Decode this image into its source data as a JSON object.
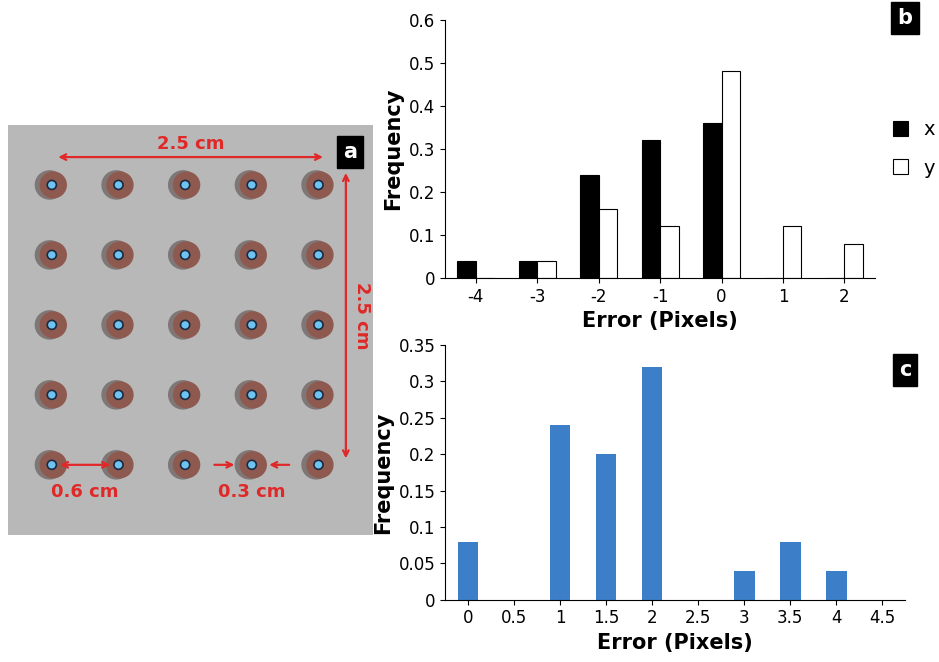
{
  "photo": {
    "label": "a",
    "rows": 5,
    "cols": 5,
    "width_label": "2.5 cm",
    "height_label": "2.5 cm",
    "spacing_label": "0.6 cm",
    "diameter_label": "0.3 cm"
  },
  "chart_data": [
    {
      "type": "bar",
      "annotations": [
        "b"
      ],
      "x_label": "Error (Pixels)",
      "y_label": "Frequency",
      "categories": [
        "-4",
        "-3",
        "-2",
        "-1",
        "0",
        "1",
        "2"
      ],
      "series": [
        {
          "name": "x",
          "color": "#000000",
          "values": [
            0.04,
            0.04,
            0.24,
            0.32,
            0.36,
            0,
            0
          ]
        },
        {
          "name": "y",
          "color": "#ffffff",
          "values": [
            0,
            0.04,
            0.16,
            0.12,
            0.48,
            0.12,
            0.08
          ]
        }
      ],
      "ylim": [
        0,
        0.6
      ],
      "yticks": [
        0,
        0.1,
        0.2,
        0.3,
        0.4,
        0.5,
        0.6
      ],
      "legend": "right"
    },
    {
      "type": "bar",
      "annotations": [
        "c"
      ],
      "x_label": "Error (Pixels)",
      "y_label": "Frequency",
      "categories": [
        "0",
        "0.5",
        "1",
        "1.5",
        "2",
        "2.5",
        "3",
        "3.5",
        "4",
        "4.5"
      ],
      "values": [
        0.08,
        0,
        0.24,
        0.2,
        0.32,
        0,
        0.04,
        0.08,
        0.04,
        0
      ],
      "color": "#3c7fc8",
      "ylim": [
        0,
        0.35
      ],
      "yticks": [
        0,
        0.05,
        0.1,
        0.15,
        0.2,
        0.25,
        0.3,
        0.35
      ]
    }
  ]
}
